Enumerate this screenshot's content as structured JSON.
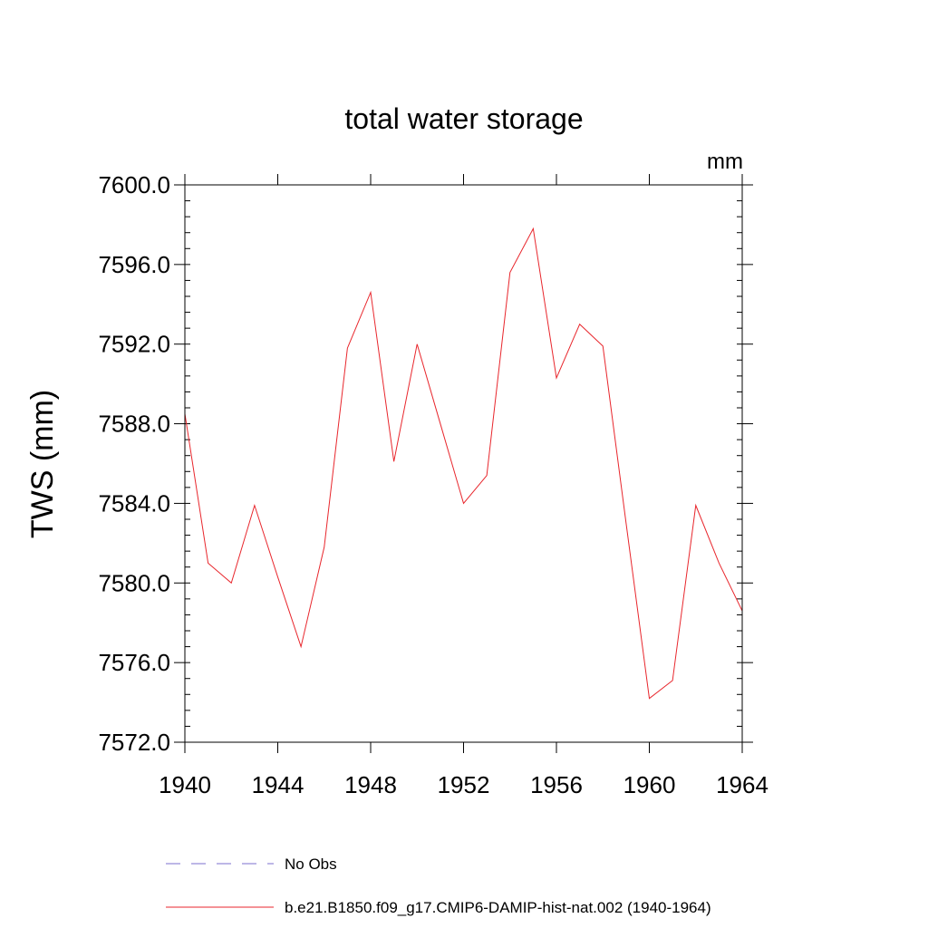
{
  "chart_data": {
    "type": "line",
    "title": "total water storage",
    "units_label": "mm",
    "ylabel": "TWS  (mm)",
    "xlabel": "",
    "xlim": [
      1940,
      1964
    ],
    "ylim": [
      7572.0,
      7600.0
    ],
    "x_ticks": [
      1940,
      1944,
      1948,
      1952,
      1956,
      1960,
      1964
    ],
    "y_ticks": [
      "7572.0",
      "7576.0",
      "7580.0",
      "7584.0",
      "7588.0",
      "7592.0",
      "7596.0",
      "7600.0"
    ],
    "x": [
      1940,
      1941,
      1942,
      1943,
      1944,
      1945,
      1946,
      1947,
      1948,
      1949,
      1950,
      1951,
      1952,
      1953,
      1954,
      1955,
      1956,
      1957,
      1958,
      1959,
      1960,
      1961,
      1962,
      1963,
      1964
    ],
    "series": [
      {
        "name": "b.e21.B1850.f09_g17.CMIP6-DAMIP-hist-nat.002 (1940-1964)",
        "color": "#e8262c",
        "dash": "solid",
        "values": [
          7588.5,
          7581.0,
          7580.0,
          7583.9,
          7580.3,
          7576.8,
          7581.8,
          7591.8,
          7594.6,
          7586.1,
          7592.0,
          7588.0,
          7584.0,
          7585.4,
          7595.6,
          7597.8,
          7590.3,
          7593.0,
          7591.9,
          7583.0,
          7574.2,
          7575.1,
          7583.9,
          7581.0,
          7578.6
        ]
      }
    ],
    "legend": [
      {
        "label": "No Obs",
        "color": "#7b6fcf",
        "dash": "dashed"
      },
      {
        "label": "b.e21.B1850.f09_g17.CMIP6-DAMIP-hist-nat.002 (1940-1964)",
        "color": "#e8262c",
        "dash": "solid"
      }
    ],
    "legend_placement": "bottom",
    "grid": false
  }
}
